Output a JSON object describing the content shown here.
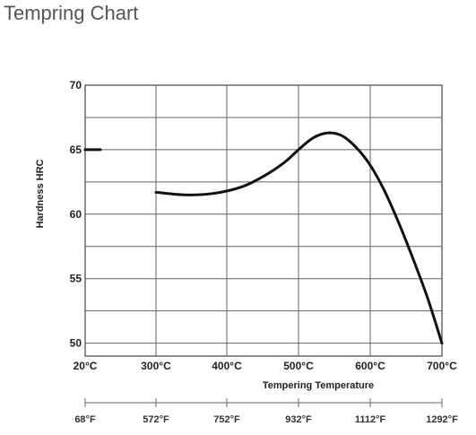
{
  "page": {
    "title": "Tempring Chart"
  },
  "chart_data": {
    "type": "line",
    "title": "Tempring Chart",
    "xlabel": "Tempering Temperature",
    "ylabel": "Hardness HRC",
    "ylim": [
      49,
      70
    ],
    "y_ticks": [
      70,
      65,
      60,
      55,
      50
    ],
    "y_tick_labels": [
      "70",
      "65",
      "60",
      "55",
      "50"
    ],
    "x_ticks_c": [
      "20°C",
      "300°C",
      "400°C",
      "500°C",
      "600°C",
      "700°C"
    ],
    "x_ticks_f": [
      "68°F",
      "572°F",
      "752°F",
      "932°F",
      "1112°F",
      "1292°F"
    ],
    "grid": true,
    "series": [
      {
        "name": "",
        "color": "#111111",
        "segments": [
          {
            "x": [
              20,
              80
            ],
            "y": [
              65,
              65
            ]
          },
          {
            "x": [
              300,
              340,
              380,
              420,
              450,
              480,
              500,
              520,
              540,
              560,
              580,
              600,
              620,
              640,
              660,
              680,
              700
            ],
            "y": [
              61.7,
              61.5,
              61.6,
              62.1,
              62.9,
              64.0,
              65.0,
              65.9,
              66.3,
              66.1,
              65.2,
              63.8,
              61.8,
              59.3,
              56.5,
              53.5,
              50.0
            ]
          }
        ]
      }
    ]
  }
}
